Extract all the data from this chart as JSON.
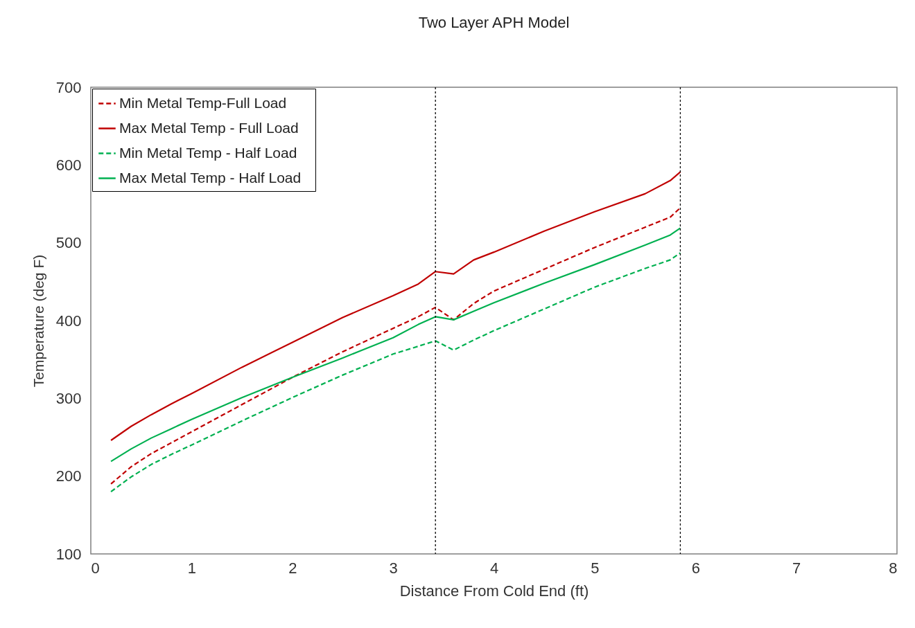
{
  "chart_data": {
    "type": "line",
    "title": "Two Layer APH Model",
    "xlabel": "Distance From Cold End (ft)",
    "ylabel": "Temperature (deg F)",
    "xlim": [
      0,
      8
    ],
    "xticks": [
      0,
      1,
      2,
      3,
      4,
      5,
      6,
      7,
      8
    ],
    "ylim": [
      100,
      700
    ],
    "yticks": [
      100,
      200,
      300,
      400,
      500,
      600,
      700
    ],
    "grid": false,
    "legend": "top left",
    "marker": "none",
    "x": [
      0.2,
      0.4,
      0.6,
      0.8,
      1.0,
      1.5,
      2.0,
      2.5,
      3.0,
      3.25,
      3.42,
      3.6,
      3.8,
      4.0,
      4.5,
      5.0,
      5.5,
      5.75,
      5.85
    ],
    "series": [
      {
        "name": "Min Metal  Temp-Full  Load",
        "color": "#c00000",
        "line_style": "dashed",
        "values": [
          190,
          212,
          229,
          243,
          257,
          292,
          327,
          360,
          390,
          405,
          417,
          401,
          422,
          438,
          466,
          494,
          520,
          533,
          545
        ]
      },
      {
        "name": "Max Metal  Temp  - Full Load",
        "color": "#c00000",
        "line_style": "solid",
        "values": [
          246,
          264,
          279,
          293,
          306,
          340,
          372,
          404,
          432,
          447,
          463,
          460,
          478,
          488,
          515,
          540,
          563,
          580,
          591
        ]
      },
      {
        "name": "Min Metal  Temp  - Half Load",
        "color": "#00b050",
        "line_style": "dashed",
        "values": [
          180,
          199,
          215,
          228,
          240,
          271,
          301,
          330,
          357,
          367,
          374,
          362,
          375,
          387,
          415,
          443,
          467,
          478,
          487
        ]
      },
      {
        "name": "Max Metal  Temp  - Half Load",
        "color": "#00b050",
        "line_style": "solid",
        "values": [
          219,
          235,
          249,
          261,
          273,
          301,
          327,
          352,
          378,
          395,
          405,
          401,
          412,
          423,
          448,
          472,
          497,
          510,
          519
        ]
      }
    ],
    "ref_lines": [
      {
        "axis": "x",
        "value": 3.42,
        "color": "#000000",
        "line_style": "dotted"
      },
      {
        "axis": "x",
        "value": 5.85,
        "color": "#000000",
        "line_style": "dotted"
      }
    ]
  }
}
